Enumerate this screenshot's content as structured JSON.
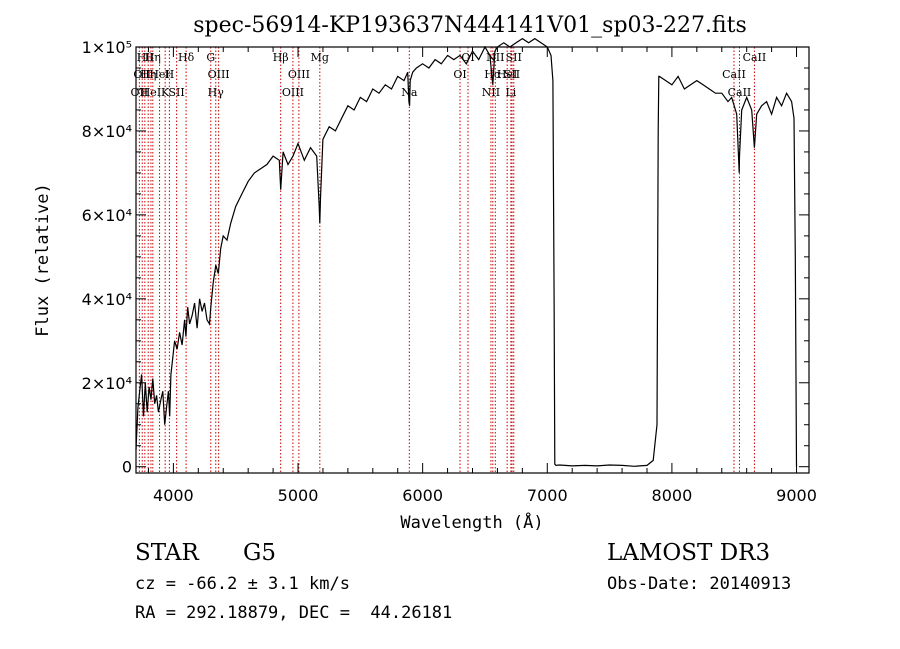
{
  "chart_data": {
    "type": "line",
    "title": "spec-56914-KP193637N444141V01_sp03-227.fits",
    "xlabel": "Wavelength (Å)",
    "ylabel": "Flux (relative)",
    "xlim": [
      3700,
      9100
    ],
    "ylim": [
      -1500,
      100000
    ],
    "x_ticks": [
      4000,
      5000,
      6000,
      7000,
      8000,
      9000
    ],
    "x_tick_labels": [
      "4000",
      "5000",
      "6000",
      "7000",
      "8000",
      "9000"
    ],
    "y_ticks": [
      0,
      20000,
      40000,
      60000,
      80000,
      100000
    ],
    "y_tick_labels": [
      "0",
      "2×10⁴",
      "4×10⁴",
      "6×10⁴",
      "8×10⁴",
      "1×10⁵"
    ],
    "grid": false,
    "line_color": "#000000",
    "marker_color": "#cc0000",
    "series": [
      {
        "x": [
          3700,
          3715,
          3730,
          3745,
          3760,
          3775,
          3790,
          3805,
          3820,
          3835,
          3850,
          3865,
          3880,
          3900,
          3915,
          3930,
          3945,
          3960,
          3970,
          3980,
          3995,
          4010,
          4030,
          4050,
          4070,
          4090,
          4100,
          4115,
          4130,
          4150,
          4170,
          4190,
          4210,
          4230,
          4250,
          4270,
          4290,
          4300,
          4320,
          4340,
          4360,
          4380,
          4400,
          4430,
          4460,
          4500,
          4550,
          4600,
          4650,
          4700,
          4750,
          4800,
          4850,
          4861,
          4880,
          4920,
          4960,
          5000,
          5050,
          5100,
          5150,
          5170,
          5175,
          5180,
          5200,
          5250,
          5300,
          5350,
          5400,
          5450,
          5500,
          5550,
          5600,
          5650,
          5700,
          5750,
          5800,
          5850,
          5880,
          5890,
          5895,
          5900,
          5920,
          5950,
          6000,
          6050,
          6100,
          6150,
          6200,
          6250,
          6300,
          6350,
          6400,
          6450,
          6500,
          6540,
          6563,
          6580,
          6600,
          6650,
          6700,
          6750,
          6800,
          6850,
          6900,
          6950,
          7000,
          7030,
          7045,
          7055,
          7060,
          7070,
          7100,
          7200,
          7300,
          7400,
          7500,
          7600,
          7700,
          7800,
          7850,
          7880,
          7890,
          7895,
          7900,
          7950,
          8000,
          8050,
          8100,
          8150,
          8200,
          8250,
          8300,
          8350,
          8400,
          8450,
          8480,
          8500,
          8520,
          8540,
          8542,
          8560,
          8600,
          8640,
          8662,
          8680,
          8720,
          8760,
          8800,
          8840,
          8880,
          8920,
          8960,
          8980,
          8990,
          9000
        ],
        "y": [
          4000,
          14000,
          18000,
          22000,
          12000,
          20000,
          13000,
          19000,
          16000,
          21000,
          15000,
          17000,
          13000,
          16000,
          18000,
          10000,
          14000,
          18000,
          12000,
          22000,
          26000,
          30000,
          28000,
          32000,
          29000,
          35000,
          31000,
          38000,
          34000,
          36000,
          39000,
          33000,
          40000,
          37000,
          39000,
          35000,
          34000,
          38000,
          44000,
          48000,
          46000,
          52000,
          55000,
          54000,
          58000,
          62000,
          65000,
          68000,
          70000,
          71000,
          72000,
          74000,
          73000,
          66000,
          75000,
          72000,
          74000,
          77000,
          73000,
          76000,
          74000,
          62000,
          58000,
          64000,
          78000,
          81000,
          80000,
          83000,
          86000,
          85000,
          88000,
          87000,
          90000,
          89000,
          91000,
          90000,
          93000,
          92000,
          94000,
          87000,
          86000,
          92000,
          94000,
          95000,
          96000,
          95000,
          97000,
          96000,
          98000,
          97000,
          98000,
          96000,
          99000,
          97000,
          100000,
          98000,
          91000,
          99000,
          100000,
          101000,
          100000,
          101000,
          102000,
          101000,
          102000,
          101000,
          100000,
          98000,
          92000,
          40000,
          600,
          300,
          400,
          200,
          300,
          200,
          400,
          300,
          100,
          300,
          1500,
          10000,
          80000,
          93000,
          93000,
          92000,
          91000,
          93000,
          90000,
          91000,
          92000,
          91000,
          90000,
          89000,
          89000,
          87000,
          88000,
          86000,
          84000,
          70000,
          74000,
          85000,
          88000,
          85000,
          76000,
          84000,
          86000,
          87000,
          84000,
          88000,
          86000,
          89000,
          87000,
          83000,
          50000,
          0
        ]
      }
    ],
    "line_markers": [
      {
        "wavelength": 3727,
        "row": 2,
        "label": "OII"
      },
      {
        "wavelength": 3750,
        "row": 1,
        "label": "OII"
      },
      {
        "wavelength": 3771,
        "row": 3,
        "label": "Hθ"
      },
      {
        "wavelength": 3798,
        "row": 1,
        "label": "Hη"
      },
      {
        "wavelength": 3820,
        "row": 2,
        "label": "HeI"
      },
      {
        "wavelength": 3835,
        "row": 3,
        "label": "Hη"
      },
      {
        "wavelength": 3889,
        "row": 1,
        "label": "HeI"
      },
      {
        "wavelength": 3934,
        "row": 2,
        "label": "K"
      },
      {
        "wavelength": 3968,
        "row": 1,
        "label": "H"
      },
      {
        "wavelength": 4026,
        "row": 2,
        "label": "SII"
      },
      {
        "wavelength": 4102,
        "row": 3,
        "label": "Hδ"
      },
      {
        "wavelength": 4300,
        "row": 3,
        "label": "G"
      },
      {
        "wavelength": 4340,
        "row": 2,
        "label": "Hγ"
      },
      {
        "wavelength": 4363,
        "row": 1,
        "label": "OIII"
      },
      {
        "wavelength": 4861,
        "row": 3,
        "label": "Hβ"
      },
      {
        "wavelength": 4959,
        "row": 2,
        "label": "OIII"
      },
      {
        "wavelength": 5007,
        "row": 1,
        "label": "OIII"
      },
      {
        "wavelength": 5175,
        "row": 3,
        "label": "Mg"
      },
      {
        "wavelength": 5893,
        "row": 2,
        "label": "Na"
      },
      {
        "wavelength": 6300,
        "row": 1,
        "label": "OI"
      },
      {
        "wavelength": 6364,
        "row": 3,
        "label": "OI"
      },
      {
        "wavelength": 6548,
        "row": 2,
        "label": "NII"
      },
      {
        "wavelength": 6563,
        "row": 1,
        "label": "Hα"
      },
      {
        "wavelength": 6583,
        "row": 3,
        "label": "NII"
      },
      {
        "wavelength": 6678,
        "row": 1,
        "label": "HeI"
      },
      {
        "wavelength": 6708,
        "row": 2,
        "label": "Li"
      },
      {
        "wavelength": 6717,
        "row": 1,
        "label": "SII"
      },
      {
        "wavelength": 6731,
        "row": 3,
        "label": "SII"
      },
      {
        "wavelength": 8498,
        "row": 1,
        "label": "CaII"
      },
      {
        "wavelength": 8542,
        "row": 2,
        "label": "CaII"
      },
      {
        "wavelength": 8662,
        "row": 3,
        "label": "CaII"
      }
    ]
  },
  "info": {
    "object_type": "STAR",
    "subclass": "G5",
    "survey": "LAMOST DR3",
    "redshift": "cz = -66.2 ± 3.1 km/s",
    "obs_date": "Obs-Date: 20140913",
    "coords": "RA = 292.18879, DEC =  44.26181"
  }
}
